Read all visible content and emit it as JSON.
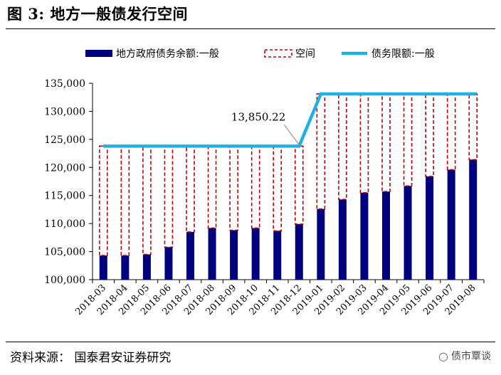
{
  "figure": {
    "title": "图 3:   地方一般债发行空间",
    "source": "资料来源：   国泰君安证券研究",
    "watermark": "债市覃谈"
  },
  "colors": {
    "balance_bar": "#00007f",
    "space_dash": "#c00000",
    "limit_line": "#1fb0e6"
  },
  "chart_data": {
    "type": "bar",
    "categories": [
      "2018-03",
      "2018-04",
      "2018-05",
      "2018-06",
      "2018-07",
      "2018-08",
      "2018-09",
      "2018-10",
      "2018-11",
      "2018-12",
      "2019-01",
      "2019-02",
      "2019-03",
      "2019-04",
      "2019-05",
      "2019-06",
      "2019-07",
      "2019-08"
    ],
    "ylim": [
      100000,
      135000
    ],
    "yticks": [
      100000,
      105000,
      110000,
      115000,
      120000,
      125000,
      130000,
      135000
    ],
    "ytick_labels": [
      "100,000",
      "105,000",
      "110,000",
      "115,000",
      "120,000",
      "125,000",
      "130,000",
      "135,000"
    ],
    "series": [
      {
        "name": "地方政府债务余额:一般",
        "kind": "bar",
        "values": [
          104300,
          104300,
          104500,
          105800,
          108500,
          109200,
          108800,
          109200,
          108700,
          109900,
          112600,
          114300,
          115500,
          115700,
          116700,
          118400,
          119600,
          121400
        ]
      },
      {
        "name": "空间",
        "kind": "dashed-box"
      },
      {
        "name": "债务限额:一般",
        "kind": "line",
        "values": [
          123800,
          123800,
          123800,
          123800,
          123800,
          123800,
          123800,
          123800,
          123800,
          123800,
          133100,
          133100,
          133100,
          133100,
          133100,
          133100,
          133100,
          133100
        ]
      }
    ],
    "annotations": [
      {
        "text": "13,850.22",
        "category": "2018-12"
      }
    ],
    "grid": false,
    "legend_position": "top"
  }
}
